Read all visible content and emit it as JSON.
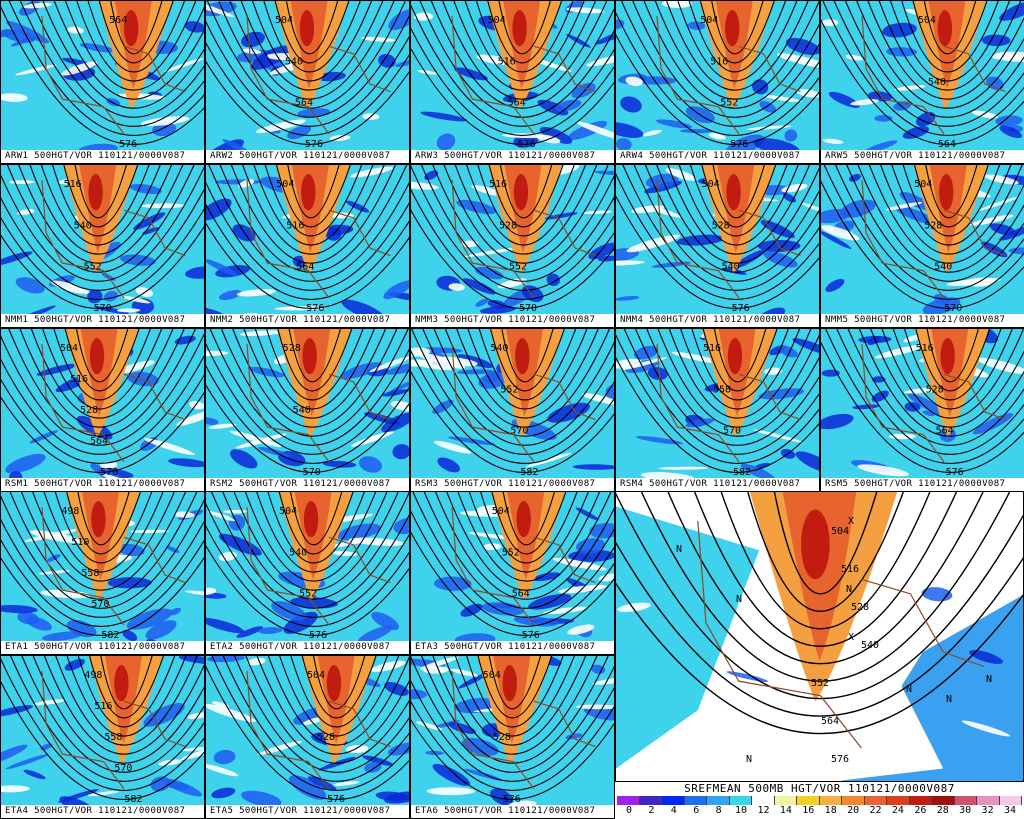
{
  "panels": [
    {
      "label": "ARW1 500HGT/VOR 110121/0000V087",
      "contours": [
        "564",
        "576"
      ]
    },
    {
      "label": "ARW2 500HGT/VOR 110121/0000V087",
      "contours": [
        "504",
        "540",
        "564",
        "576"
      ]
    },
    {
      "label": "ARW3 500HGT/VOR 110121/0000V087",
      "contours": [
        "504",
        "516",
        "564",
        "576"
      ]
    },
    {
      "label": "ARW4 500HGT/VOR 110121/0000V087",
      "contours": [
        "504",
        "516",
        "552",
        "576"
      ]
    },
    {
      "label": "ARW5 500HGT/VOR 110121/0000V087",
      "contours": [
        "504",
        "540",
        "564"
      ]
    },
    {
      "label": "NMM1 500HGT/VOR 110121/0000V087",
      "contours": [
        "516",
        "540",
        "552",
        "570"
      ]
    },
    {
      "label": "NMM2 500HGT/VOR 110121/0000V087",
      "contours": [
        "504",
        "516",
        "564",
        "576"
      ]
    },
    {
      "label": "NMM3 500HGT/VOR 110121/0000V087",
      "contours": [
        "516",
        "528",
        "552",
        "570"
      ]
    },
    {
      "label": "NMM4 500HGT/VOR 110121/0000V087",
      "contours": [
        "504",
        "528",
        "540",
        "576"
      ]
    },
    {
      "label": "NMM5 500HGT/VOR 110121/0000V087",
      "contours": [
        "504",
        "528",
        "540",
        "570"
      ]
    },
    {
      "label": "RSM1 500HGT/VOR 110121/0000V087",
      "contours": [
        "504",
        "516",
        "528",
        "564",
        "576"
      ]
    },
    {
      "label": "RSM2 500HGT/VOR 110121/0000V087",
      "contours": [
        "528",
        "540",
        "570"
      ]
    },
    {
      "label": "RSM3 500HGT/VOR 110121/0000V087",
      "contours": [
        "540",
        "552",
        "570",
        "582"
      ]
    },
    {
      "label": "RSM4 500HGT/VOR 110121/0000V087",
      "contours": [
        "516",
        "558",
        "570",
        "582"
      ]
    },
    {
      "label": "RSM5 500HGT/VOR 110121/0000V087",
      "contours": [
        "516",
        "528",
        "564",
        "576"
      ]
    },
    {
      "label": "ETA1 500HGT/VOR 110121/0000V087",
      "contours": [
        "498",
        "510",
        "558",
        "570",
        "582"
      ]
    },
    {
      "label": "ETA2 500HGT/VOR 110121/0000V087",
      "contours": [
        "504",
        "540",
        "552",
        "576"
      ]
    },
    {
      "label": "ETA3 500HGT/VOR 110121/0000V087",
      "contours": [
        "504",
        "552",
        "564",
        "576"
      ]
    },
    {
      "label": "ETA4 500HGT/VOR 110121/0000V087",
      "contours": [
        "498",
        "516",
        "558",
        "570",
        "582"
      ]
    },
    {
      "label": "ETA5 500HGT/VOR 110121/0000V087",
      "contours": [
        "504",
        "528",
        "576"
      ]
    },
    {
      "label": "ETA6 500HGT/VOR 110121/0000V087",
      "contours": [
        "504",
        "528",
        "576"
      ]
    }
  ],
  "mean": {
    "title": "SREFMEAN 500MB HGT/VOR 110121/0000V087",
    "contours": [
      "504",
      "516",
      "528",
      "540",
      "552",
      "564",
      "576"
    ],
    "markers": [
      "N",
      "X"
    ]
  },
  "colorbar": {
    "labels": [
      "0",
      "2",
      "4",
      "6",
      "8",
      "10",
      "12",
      "14",
      "16",
      "18",
      "20",
      "22",
      "24",
      "26",
      "28",
      "30",
      "32",
      "34"
    ],
    "colors": [
      "#a020f0",
      "#3c28c8",
      "#0028f5",
      "#1f6ff0",
      "#2fa4f0",
      "#34d8e8",
      "#ffffff",
      "#f2f2a0",
      "#f5d020",
      "#f5b040",
      "#f08a30",
      "#e8642e",
      "#d8401e",
      "#c01c10",
      "#a01010",
      "#d05070",
      "#e890c0",
      "#f5c8e8"
    ]
  }
}
